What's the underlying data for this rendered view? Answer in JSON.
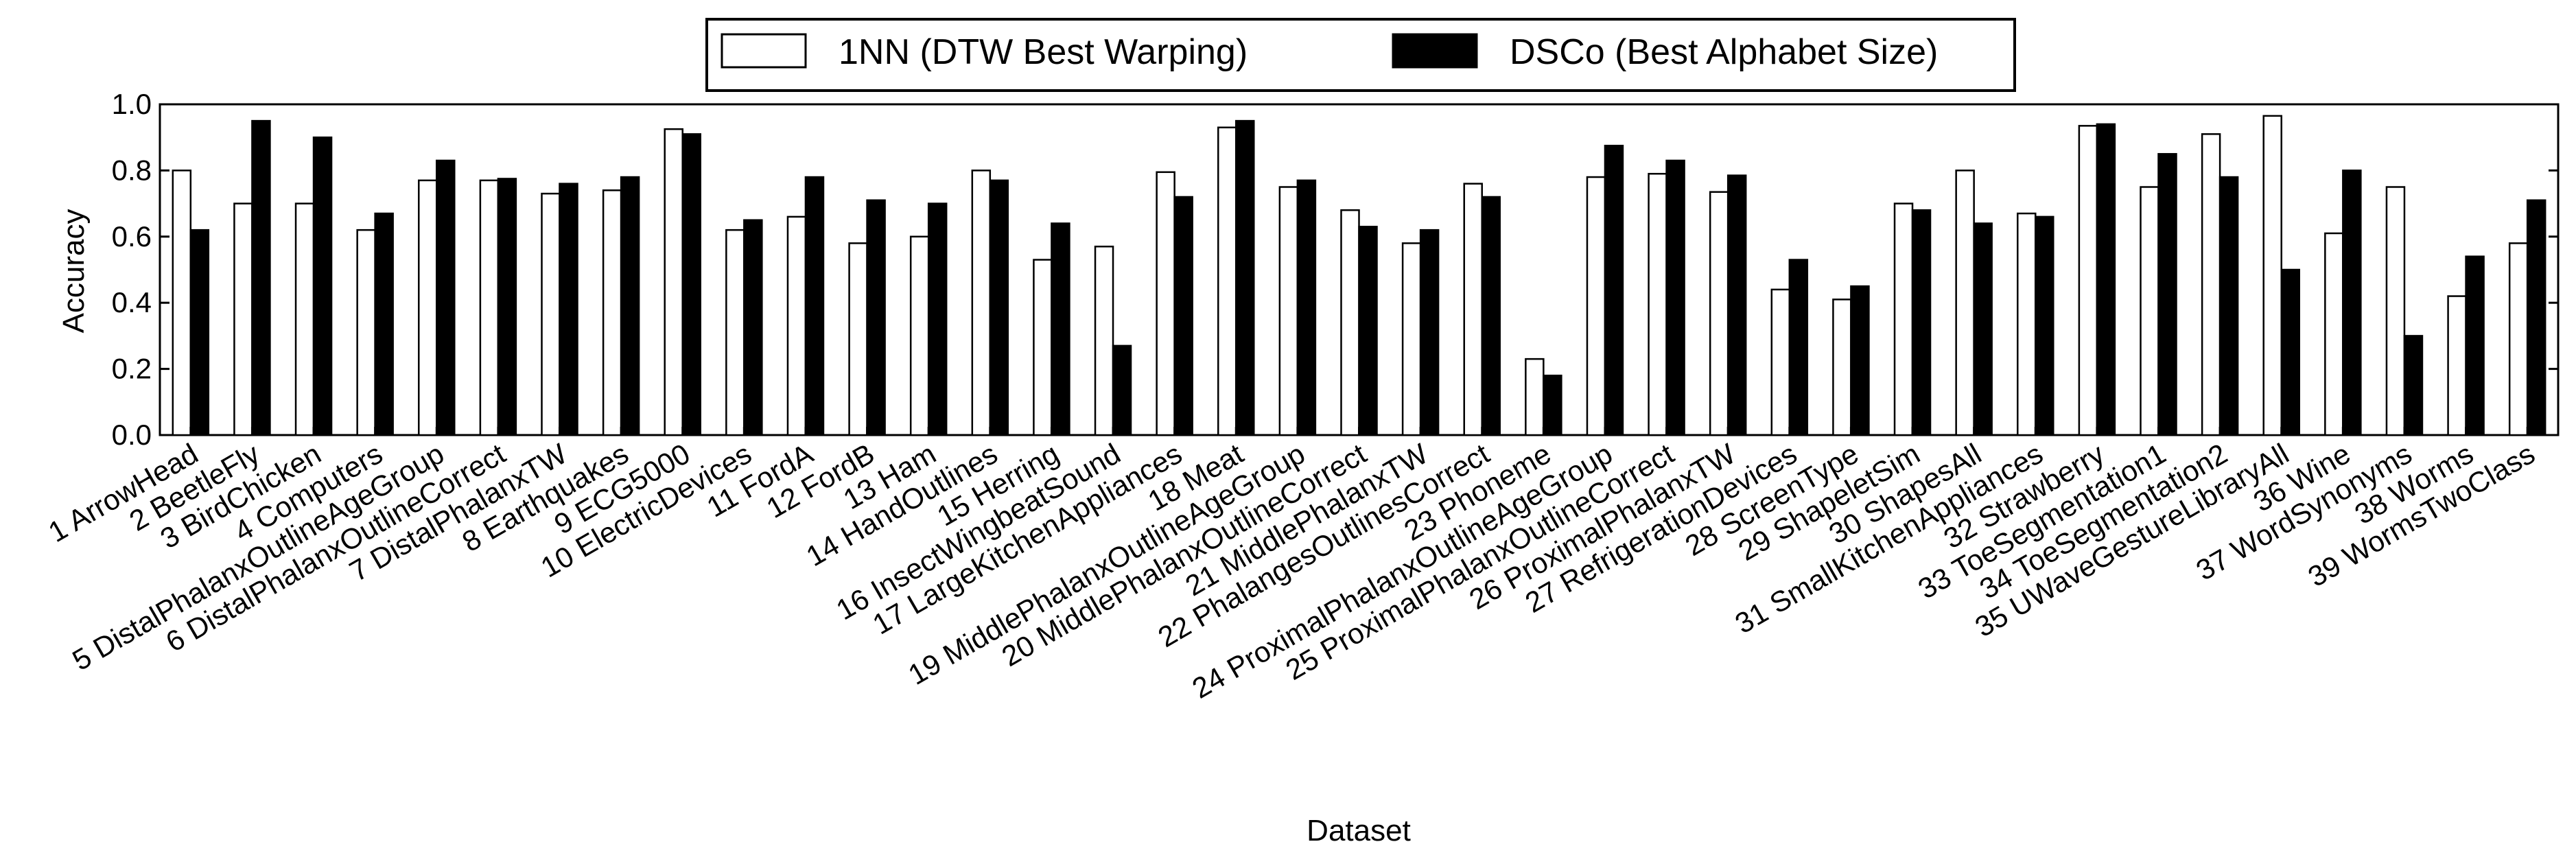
{
  "chart_data": {
    "type": "bar",
    "xlabel": "Dataset",
    "ylabel": "Accuracy",
    "ylim": [
      0,
      1
    ],
    "yticks": [
      "0.0",
      "0.2",
      "0.4",
      "0.6",
      "0.8",
      "1.0"
    ],
    "legend_placement": "top-center",
    "grid": false,
    "categories": [
      "1 ArrowHead",
      "2 BeetleFly",
      "3 BirdChicken",
      "4 Computers",
      "5 DistalPhalanxOutlineAgeGroup",
      "6 DistalPhalanxOutlineCorrect",
      "7 DistalPhalanxTW",
      "8 Earthquakes",
      "9 ECG5000",
      "10 ElectricDevices",
      "11 FordA",
      "12 FordB",
      "13 Ham",
      "14 HandOutlines",
      "15 Herring",
      "16 InsectWingbeatSound",
      "17 LargeKitchenAppliances",
      "18 Meat",
      "19 MiddlePhalanxOutlineAgeGroup",
      "20 MiddlePhalanxOutlineCorrect",
      "21 MiddlePhalanxTW",
      "22 PhalangesOutlinesCorrect",
      "23 Phoneme",
      "24 ProximalPhalanxOutlineAgeGroup",
      "25 ProximalPhalanxOutlineCorrect",
      "26 ProximalPhalanxTW",
      "27 RefrigerationDevices",
      "28 ScreenType",
      "29 ShapeletSim",
      "30 ShapesAll",
      "31 SmallKitchenAppliances",
      "32 Strawberry",
      "33 ToeSegmentation1",
      "34 ToeSegmentation2",
      "35 UWaveGestureLibraryAll",
      "36 Wine",
      "37 WordSynonyms",
      "38 Worms",
      "39 WormsTwoClass"
    ],
    "series": [
      {
        "name": "1NN (DTW Best Warping)",
        "color": "#ffffff",
        "values": [
          0.8,
          0.7,
          0.7,
          0.62,
          0.77,
          0.77,
          0.73,
          0.74,
          0.925,
          0.62,
          0.66,
          0.58,
          0.6,
          0.8,
          0.53,
          0.57,
          0.795,
          0.93,
          0.75,
          0.68,
          0.58,
          0.76,
          0.23,
          0.78,
          0.79,
          0.735,
          0.44,
          0.41,
          0.7,
          0.8,
          0.67,
          0.935,
          0.75,
          0.91,
          0.965,
          0.61,
          0.75,
          0.42,
          0.58
        ]
      },
      {
        "name": "DSCo (Best Alphabet Size)",
        "color": "#000000",
        "values": [
          0.62,
          0.95,
          0.9,
          0.67,
          0.83,
          0.775,
          0.76,
          0.78,
          0.91,
          0.65,
          0.78,
          0.71,
          0.7,
          0.77,
          0.64,
          0.27,
          0.72,
          0.95,
          0.77,
          0.63,
          0.62,
          0.72,
          0.18,
          0.875,
          0.83,
          0.785,
          0.53,
          0.45,
          0.68,
          0.64,
          0.66,
          0.94,
          0.85,
          0.78,
          0.5,
          0.8,
          0.3,
          0.54,
          0.71
        ]
      }
    ]
  }
}
